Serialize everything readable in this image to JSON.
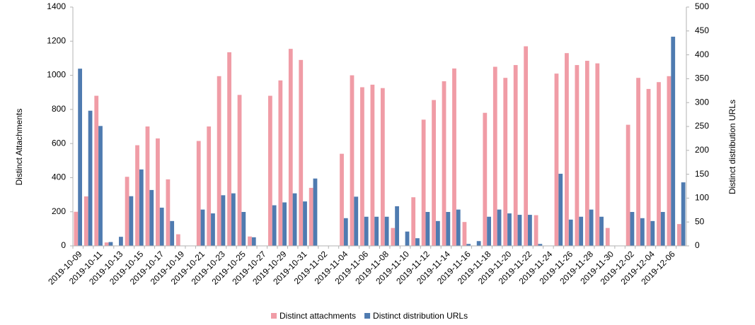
{
  "chart_data": {
    "type": "bar",
    "categories": [
      "2019-10-09",
      null,
      "2019-10-11",
      null,
      "2019-10-13",
      null,
      "2019-10-15",
      null,
      "2019-10-17",
      null,
      "2019-10-19",
      null,
      "2019-10-21",
      null,
      "2019-10-23",
      null,
      "2019-10-25",
      null,
      "2019-10-27",
      null,
      "2019-10-29",
      null,
      "2019-10-31",
      null,
      "2019-11-02",
      null,
      "2019-11-04",
      null,
      "2019-11-06",
      null,
      "2019-11-08",
      null,
      "2019-11-10",
      null,
      "2019-11-12",
      null,
      "2019-11-14",
      null,
      "2019-11-16",
      null,
      "2019-11-18",
      null,
      "2019-11-20",
      null,
      "2019-11-22",
      null,
      "2019-11-24",
      null,
      "2019-11-26",
      null,
      "2019-11-28",
      null,
      "2019-11-30",
      null,
      "2019-12-02",
      null,
      "2019-12-04",
      null,
      "2019-12-06",
      null
    ],
    "y_label": "Distinct Attachments",
    "y2_label": "Distinct distribution URLs",
    "ylim": [
      0,
      1400
    ],
    "yticks": [
      0,
      200,
      400,
      600,
      800,
      1000,
      1200,
      1400
    ],
    "y2lim": [
      0,
      500
    ],
    "y2ticks": [
      0,
      50,
      100,
      150,
      200,
      250,
      300,
      350,
      400,
      450,
      500
    ],
    "legend": "bottom",
    "series": [
      {
        "name": "Distinct attachments",
        "color": "#f09ca6",
        "values": [
          200,
          290,
          880,
          20,
          0,
          405,
          590,
          700,
          630,
          390,
          68,
          0,
          615,
          700,
          995,
          1135,
          885,
          55,
          0,
          880,
          970,
          1155,
          1090,
          340,
          0,
          0,
          540,
          1000,
          930,
          945,
          925,
          105,
          0,
          285,
          740,
          855,
          965,
          1040,
          140,
          0,
          780,
          1050,
          985,
          1060,
          1170,
          180,
          0,
          1010,
          1130,
          1060,
          1085,
          1070,
          105,
          0,
          710,
          985,
          920,
          960,
          995,
          128
        ]
      },
      {
        "name": "Distinct distribution URLs",
        "color": "#4f7bb0",
        "axis": "y2",
        "values": [
          371,
          283,
          251,
          8,
          19,
          104,
          160,
          117,
          80,
          52,
          0,
          0,
          76,
          68,
          106,
          110,
          71,
          18,
          0,
          85,
          91,
          110,
          93,
          141,
          0,
          0,
          58,
          103,
          61,
          61,
          61,
          83,
          30,
          16,
          71,
          52,
          71,
          76,
          4,
          10,
          61,
          76,
          68,
          65,
          65,
          4,
          0,
          151,
          55,
          61,
          76,
          61,
          0,
          0,
          71,
          58,
          52,
          71,
          438,
          133
        ]
      }
    ]
  }
}
